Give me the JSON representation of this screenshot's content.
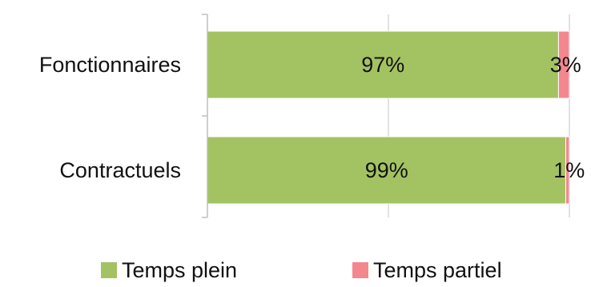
{
  "chart_data": {
    "type": "bar",
    "orientation": "horizontal",
    "stacked": true,
    "categories": [
      "Fonctionnaires",
      "Contractuels"
    ],
    "series": [
      {
        "name": "Temps plein",
        "values": [
          97,
          99
        ],
        "labels": [
          "97%",
          "99%"
        ],
        "color": "#a3c362"
      },
      {
        "name": "Temps partiel",
        "values": [
          3,
          1
        ],
        "labels": [
          "3%",
          "1%"
        ],
        "color": "#f4878d"
      }
    ],
    "xlim": [
      0,
      100
    ],
    "grid": true,
    "legend_position": "bottom"
  }
}
